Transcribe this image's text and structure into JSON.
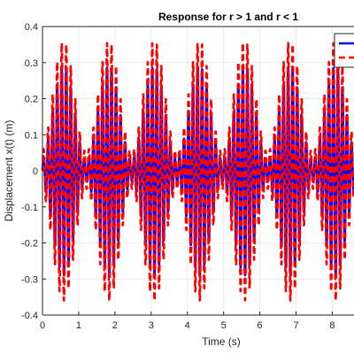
{
  "chart_data": {
    "type": "line",
    "title": "Response for r > 1 and r < 1",
    "xlabel": "Time (s)",
    "ylabel": "Displacement x(t) (m)",
    "xlim": [
      0,
      8.6
    ],
    "ylim": [
      -0.4,
      0.4
    ],
    "xticks": [
      0,
      1,
      2,
      3,
      4,
      5,
      6,
      7,
      8
    ],
    "yticks": [
      -0.4,
      -0.3,
      -0.2,
      -0.1,
      0,
      0.1,
      0.2,
      0.3,
      0.4
    ],
    "grid": true,
    "legend_position": "top-right",
    "beat_period_s": 1.25,
    "carrier_frequency_hz": 8.0,
    "series": [
      {
        "color": "#0000ff",
        "style": "solid",
        "peak_amplitude": 0.29,
        "min_amplitude": 0.03
      },
      {
        "color": "#ff0000",
        "style": "dashed",
        "peak_amplitude": 0.36,
        "min_amplitude": 0.05
      }
    ]
  }
}
